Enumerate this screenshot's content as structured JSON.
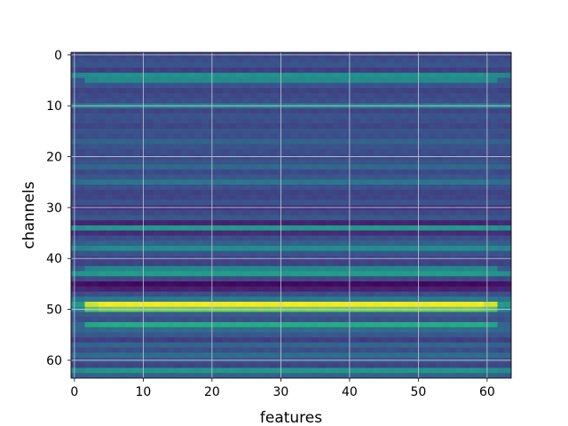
{
  "chart_data": {
    "type": "heatmap",
    "xlabel": "features",
    "ylabel": "channels",
    "colormap": "viridis",
    "n_cols": 64,
    "n_rows": 64,
    "xticks": [
      0,
      10,
      20,
      30,
      40,
      50,
      60
    ],
    "yticks": [
      0,
      10,
      20,
      30,
      40,
      50,
      60
    ],
    "xlim": [
      -0.5,
      63.5
    ],
    "ylim": [
      63.5,
      -0.5
    ],
    "grid": true,
    "row_values": [
      0.22,
      0.24,
      0.26,
      0.2,
      0.5,
      0.47,
      0.26,
      0.21,
      0.23,
      0.24,
      0.42,
      0.22,
      0.26,
      0.24,
      0.22,
      0.26,
      0.24,
      0.32,
      0.26,
      0.24,
      0.23,
      0.26,
      0.34,
      0.23,
      0.27,
      0.39,
      0.25,
      0.21,
      0.22,
      0.26,
      0.18,
      0.23,
      0.27,
      0.12,
      0.54,
      0.15,
      0.24,
      0.31,
      0.48,
      0.26,
      0.22,
      0.21,
      0.46,
      0.55,
      0.23,
      0.03,
      0.12,
      0.24,
      0.41,
      0.99,
      0.78,
      0.29,
      0.24,
      0.62,
      0.36,
      0.28,
      0.2,
      0.33,
      0.24,
      0.36,
      0.26,
      0.22,
      0.52,
      0.32
    ],
    "edge_values": {
      "5": 0.28,
      "42": 0.3,
      "49": 0.55,
      "50": 0.45,
      "53": 0.34
    }
  }
}
